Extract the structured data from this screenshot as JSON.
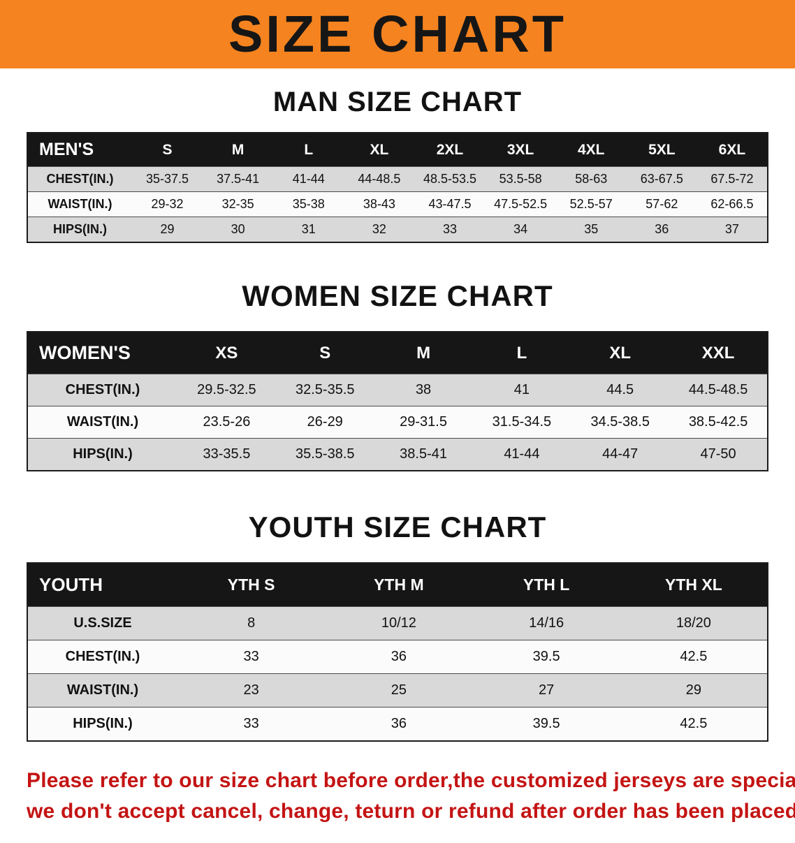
{
  "banner": {
    "title": "SIZE CHART"
  },
  "sections": [
    {
      "heading": "MAN SIZE CHART",
      "table": {
        "corner": "MEN'S",
        "columns": [
          "S",
          "M",
          "L",
          "XL",
          "2XL",
          "3XL",
          "4XL",
          "5XL",
          "6XL"
        ],
        "rows": [
          {
            "label": "CHEST(IN.)",
            "values": [
              "35-37.5",
              "37.5-41",
              "41-44",
              "44-48.5",
              "48.5-53.5",
              "53.5-58",
              "58-63",
              "63-67.5",
              "67.5-72"
            ]
          },
          {
            "label": "WAIST(IN.)",
            "values": [
              "29-32",
              "32-35",
              "35-38",
              "38-43",
              "43-47.5",
              "47.5-52.5",
              "52.5-57",
              "57-62",
              "62-66.5"
            ]
          },
          {
            "label": "HIPS(IN.)",
            "values": [
              "29",
              "30",
              "31",
              "32",
              "33",
              "34",
              "35",
              "36",
              "37"
            ]
          }
        ]
      }
    },
    {
      "heading": "WOMEN SIZE CHART",
      "table": {
        "corner": "WOMEN'S",
        "columns": [
          "XS",
          "S",
          "M",
          "L",
          "XL",
          "XXL"
        ],
        "rows": [
          {
            "label": "CHEST(IN.)",
            "values": [
              "29.5-32.5",
              "32.5-35.5",
              "38",
              "41",
              "44.5",
              "44.5-48.5"
            ]
          },
          {
            "label": "WAIST(IN.)",
            "values": [
              "23.5-26",
              "26-29",
              "29-31.5",
              "31.5-34.5",
              "34.5-38.5",
              "38.5-42.5"
            ]
          },
          {
            "label": "HIPS(IN.)",
            "values": [
              "33-35.5",
              "35.5-38.5",
              "38.5-41",
              "41-44",
              "44-47",
              "47-50"
            ]
          }
        ]
      }
    },
    {
      "heading": "YOUTH SIZE CHART",
      "table": {
        "corner": "YOUTH",
        "columns": [
          "YTH S",
          "YTH M",
          "YTH L",
          "YTH XL"
        ],
        "rows": [
          {
            "label": "U.S.SIZE",
            "values": [
              "8",
              "10/12",
              "14/16",
              "18/20"
            ]
          },
          {
            "label": "CHEST(IN.)",
            "values": [
              "33",
              "36",
              "39.5",
              "42.5"
            ]
          },
          {
            "label": "WAIST(IN.)",
            "values": [
              "23",
              "25",
              "27",
              "29"
            ]
          },
          {
            "label": "HIPS(IN.)",
            "values": [
              "33",
              "36",
              "39.5",
              "42.5"
            ]
          }
        ]
      }
    }
  ],
  "footer": {
    "lines": [
      "Please refer to our size chart before order,the customized jerseys are special products,",
      "we don't accept cancel, change, teturn or refund after order has been placed!"
    ]
  },
  "colors": {
    "banner_bg": "#F5831F",
    "table_header_bg": "#161616",
    "row_stripe": "#D9D9D9",
    "footer_text": "#C41414"
  }
}
